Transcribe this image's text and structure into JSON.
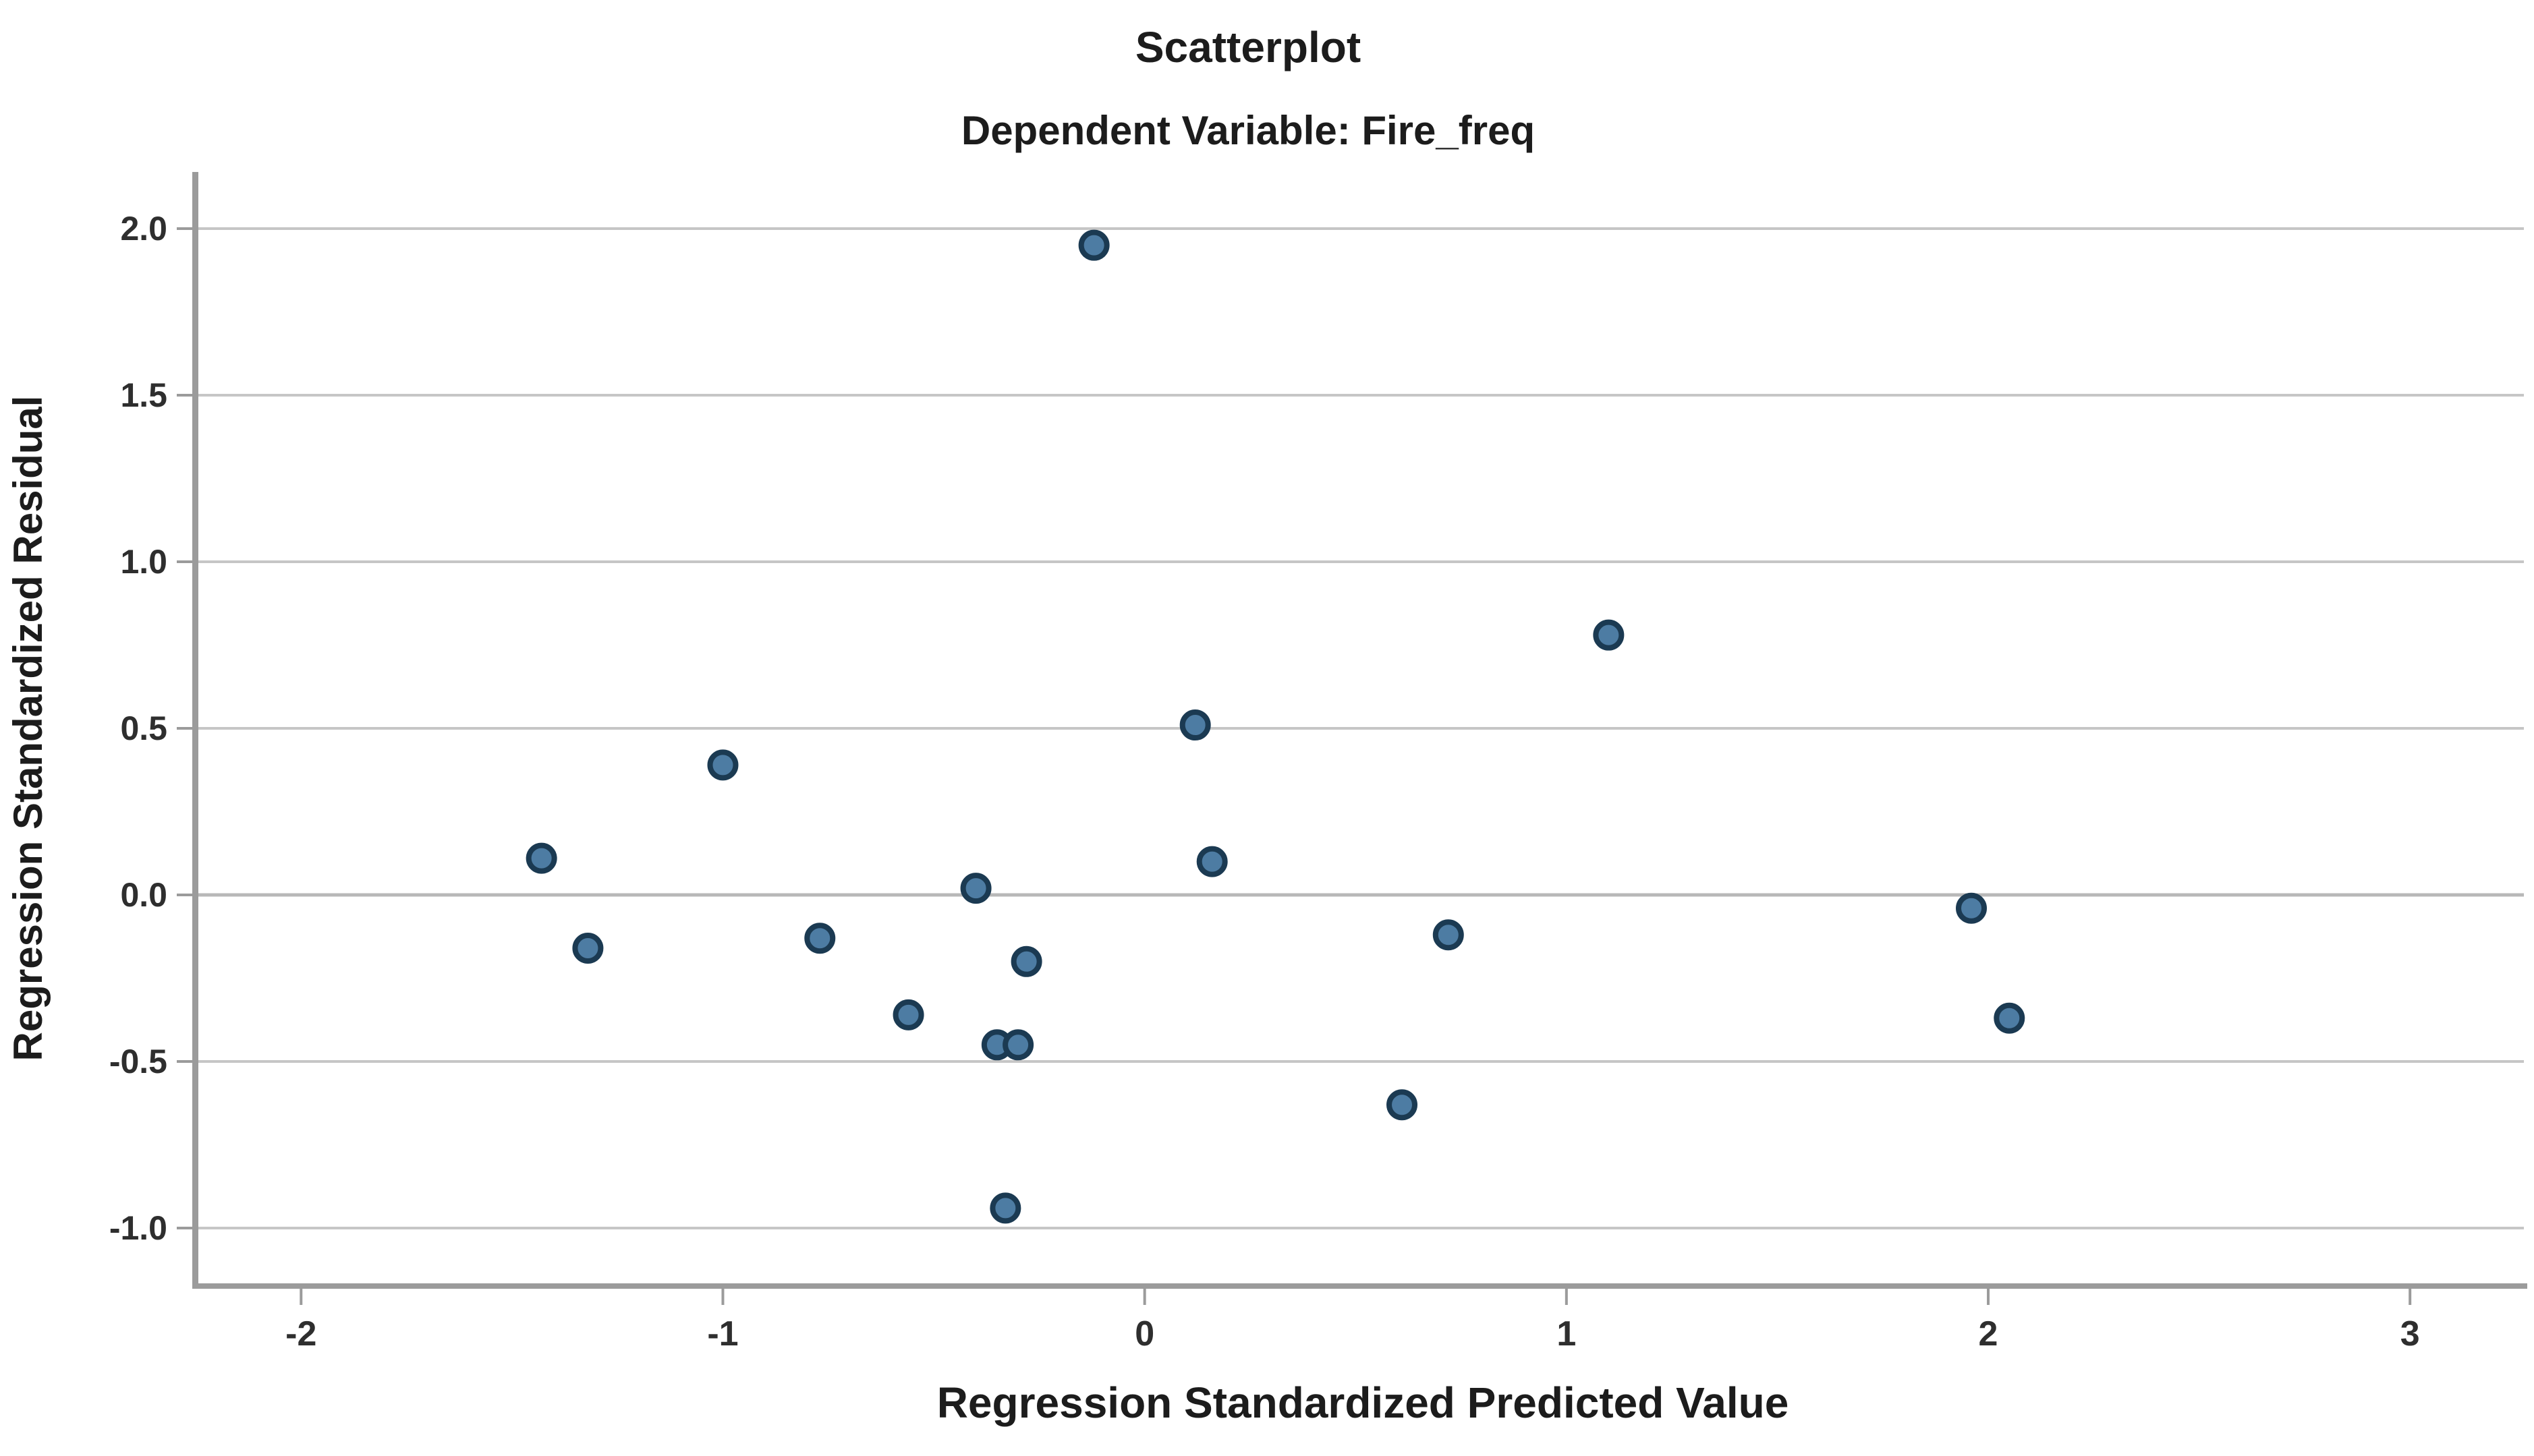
{
  "chart_data": {
    "type": "scatter",
    "title": "Scatterplot",
    "subtitle": "Dependent Variable: Fire_freq",
    "xlabel": "Regression Standardized Predicted Value",
    "ylabel": "Regression Standardized Residual",
    "xlim": [
      -2.25,
      3.27
    ],
    "ylim": [
      -1.17,
      2.17
    ],
    "x_ticks": [
      "-2",
      "-1",
      "0",
      "1",
      "2",
      "3"
    ],
    "y_ticks": [
      "2.0",
      "1.5",
      "1.0",
      "0.5",
      "0.0",
      "-0.5",
      "-1.0"
    ],
    "grid": "horizontal-only",
    "legend": "none",
    "points": [
      [
        -1.43,
        0.11
      ],
      [
        -1.32,
        -0.16
      ],
      [
        -1.0,
        0.39
      ],
      [
        -0.77,
        -0.13
      ],
      [
        -0.56,
        -0.36
      ],
      [
        -0.4,
        0.02
      ],
      [
        -0.35,
        -0.45
      ],
      [
        -0.33,
        -0.94
      ],
      [
        -0.3,
        -0.45
      ],
      [
        -0.28,
        -0.2
      ],
      [
        -0.12,
        1.95
      ],
      [
        0.12,
        0.51
      ],
      [
        0.16,
        0.1
      ],
      [
        0.61,
        -0.63
      ],
      [
        0.72,
        -0.12
      ],
      [
        1.1,
        0.78
      ],
      [
        1.96,
        -0.04
      ],
      [
        2.05,
        -0.37
      ]
    ],
    "colors": {
      "marker_fill": "#4d7ca3",
      "marker_stroke": "#1b3a52",
      "gridline": "#c6c6c6",
      "zero_gridline": "#b8b8b8",
      "axis_spine": "#9b9b9b",
      "title_text": "#1c1c1c",
      "tick_text": "#2e2e2e",
      "background": "#ffffff"
    }
  }
}
